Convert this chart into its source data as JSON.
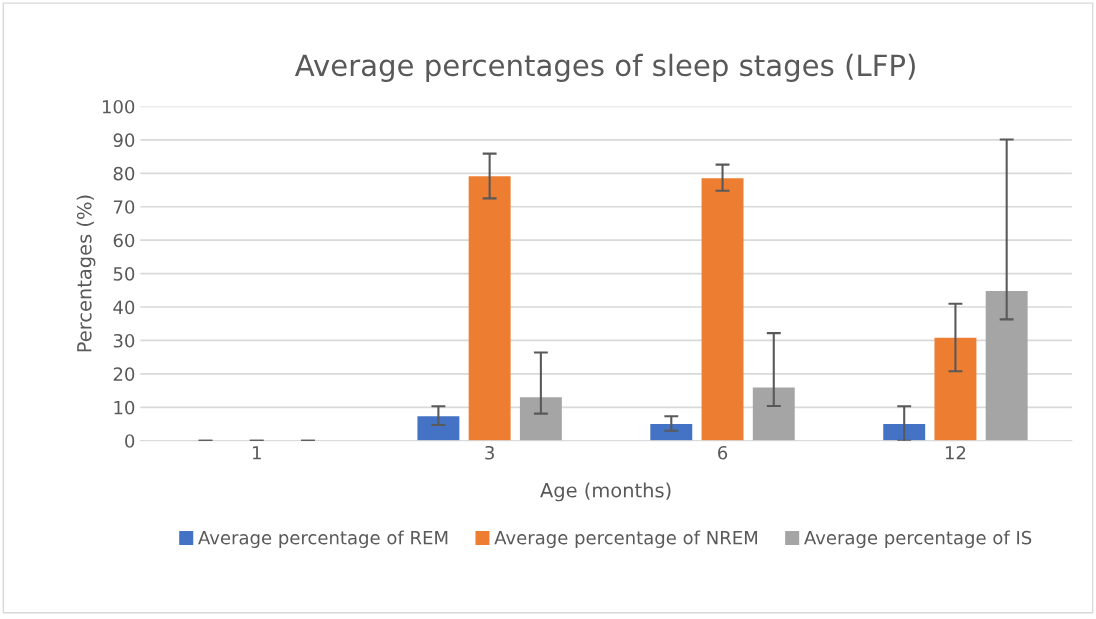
{
  "chart_data": {
    "type": "bar",
    "title": "Average percentages of sleep stages (LFP)",
    "xlabel": "Age (months)",
    "ylabel": "Percentages (%)",
    "categories": [
      "1",
      "3",
      "6",
      "12"
    ],
    "series": [
      {
        "name": "Average percentage of REM",
        "color": "#4472c4",
        "values": [
          0,
          7.3,
          5.0,
          5.0
        ],
        "errors": [
          [
            0,
            0
          ],
          [
            4.7,
            10.3
          ],
          [
            3.0,
            7.3
          ],
          [
            0,
            10.3
          ]
        ]
      },
      {
        "name": "Average percentage of NREM",
        "color": "#ed7d31",
        "values": [
          0,
          79.1,
          78.5,
          30.8
        ],
        "errors": [
          [
            0,
            0
          ],
          [
            72.5,
            85.9
          ],
          [
            74.8,
            82.6
          ],
          [
            20.8,
            41.0
          ]
        ]
      },
      {
        "name": "Average percentage of IS",
        "color": "#a5a5a5",
        "values": [
          0,
          13.0,
          15.9,
          44.8
        ],
        "errors": [
          [
            0,
            0
          ],
          [
            8.1,
            26.4
          ],
          [
            10.4,
            32.2
          ],
          [
            36.3,
            90.1
          ]
        ]
      }
    ],
    "ylim": [
      0,
      100
    ],
    "yticks": [
      0,
      10,
      20,
      30,
      40,
      50,
      60,
      70,
      80,
      90,
      100
    ],
    "grid": "y",
    "legend": "bottom"
  }
}
